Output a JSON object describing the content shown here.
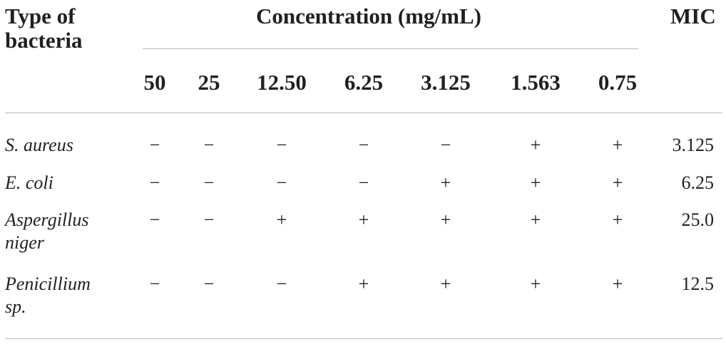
{
  "header": {
    "type_label": "Type of\nbacteria",
    "concentration_label": "Concentration (mg/mL)",
    "mic_label": "MIC"
  },
  "columns": [
    "50",
    "25",
    "12.50",
    "6.25",
    "3.125",
    "1.563",
    "0.75"
  ],
  "rows": [
    {
      "name": "S. aureus",
      "cells": [
        "−",
        "−",
        "−",
        "−",
        "−",
        "+",
        "+"
      ],
      "mic": "3.125"
    },
    {
      "name": "E. coli",
      "cells": [
        "−",
        "−",
        "−",
        "−",
        "+",
        "+",
        "+"
      ],
      "mic": "6.25"
    },
    {
      "name": "Aspergillus\nniger",
      "cells": [
        "−",
        "−",
        "+",
        "+",
        "+",
        "+",
        "+"
      ],
      "mic": "25.0"
    },
    {
      "name": "Penicillium\nsp.",
      "cells": [
        "−",
        "−",
        "−",
        "+",
        "+",
        "+",
        "+"
      ],
      "mic": "12.5"
    }
  ]
}
